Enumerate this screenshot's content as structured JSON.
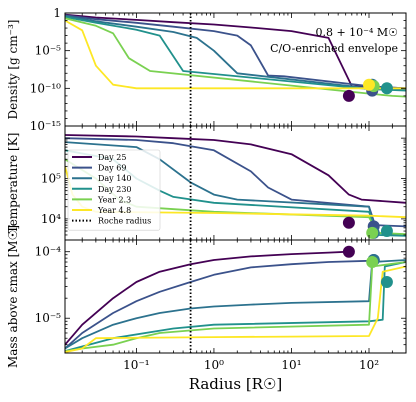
{
  "chart_data": [
    {
      "type": "line",
      "panel": "density",
      "ylabel": "Density [g cm⁻³]",
      "xscale": "log",
      "yscale": "log",
      "xlim": [
        0.012,
        300
      ],
      "ylim": [
        1e-15,
        1
      ],
      "ytick_labels": [
        "1",
        "10⁻⁵",
        "10⁻¹⁰",
        "10⁻¹⁵"
      ],
      "ytick_values": [
        1,
        1e-05,
        1e-10,
        1e-15
      ],
      "annotation_mass": "0.8 + 10⁻⁴ M☉",
      "annotation_env": "C/O-enriched envelope",
      "series": [
        {
          "name": "Day 25",
          "color": "#440154",
          "x": [
            0.012,
            0.03,
            0.1,
            0.3,
            1,
            3,
            10,
            30,
            60,
            100,
            200,
            300
          ],
          "y": [
            0.6,
            0.25,
            0.12,
            0.06,
            0.03,
            0.012,
            0.004,
            0.0005,
            2e-10,
            1.5e-10,
            1.2e-10,
            1e-10
          ],
          "marker": [
            55,
            1e-11
          ]
        },
        {
          "name": "Day 69",
          "color": "#3b528b",
          "x": [
            0.012,
            0.03,
            0.1,
            0.3,
            1,
            2,
            3,
            5,
            8,
            100,
            200,
            300
          ],
          "y": [
            0.5,
            0.15,
            0.05,
            0.015,
            0.004,
            0.001,
            5e-05,
            5e-09,
            4e-09,
            2e-10,
            1.2e-10,
            1e-10
          ],
          "marker": [
            110,
            5e-11
          ]
        },
        {
          "name": "Day 140",
          "color": "#2c728e",
          "x": [
            0.012,
            0.03,
            0.1,
            0.3,
            0.6,
            1,
            2,
            100,
            200,
            300
          ],
          "y": [
            0.4,
            0.08,
            0.015,
            0.003,
            0.0005,
            1e-05,
            1e-08,
            1e-10,
            8e-11,
            7e-11
          ],
          "marker": [
            110,
            3e-10
          ]
        },
        {
          "name": "Day 230",
          "color": "#21918c",
          "x": [
            0.012,
            0.03,
            0.1,
            0.2,
            0.4,
            100,
            200,
            300
          ],
          "y": [
            0.3,
            0.05,
            0.006,
            0.001,
            2e-08,
            8e-11,
            6e-11,
            5e-11
          ],
          "marker": [
            170,
            1e-10
          ]
        },
        {
          "name": "Year 2.3",
          "color": "#7ad151",
          "x": [
            0.012,
            0.03,
            0.05,
            0.08,
            0.15,
            100,
            200,
            300
          ],
          "y": [
            0.2,
            0.02,
            0.002,
            1e-06,
            2e-08,
            2e-11,
            1e-11,
            8e-12
          ],
          "marker": [
            115,
            2e-10
          ]
        },
        {
          "name": "Year 4.8",
          "color": "#fde725",
          "x": [
            0.012,
            0.02,
            0.03,
            0.05,
            0.1,
            1,
            10,
            100,
            300
          ],
          "y": [
            0.1,
            0.005,
            1e-07,
            3e-10,
            1e-10,
            1e-10,
            1e-10,
            1e-10,
            1e-10
          ],
          "marker": [
            100,
            3e-10
          ]
        }
      ]
    },
    {
      "type": "line",
      "panel": "temperature",
      "ylabel": "Temperature [K]",
      "xscale": "log",
      "yscale": "log",
      "xlim": [
        0.012,
        300
      ],
      "ylim": [
        3000,
        2000000
      ],
      "ytick_labels": [
        "10⁵",
        "10⁴"
      ],
      "ytick_values": [
        100000,
        10000
      ],
      "series": [
        {
          "name": "Day 25",
          "color": "#440154",
          "x": [
            0.012,
            0.1,
            0.3,
            1,
            3,
            10,
            30,
            55,
            80,
            300
          ],
          "y": [
            1200000,
            1100000,
            1000000,
            900000,
            700000,
            400000,
            120000,
            40000,
            30000,
            25000
          ],
          "marker": [
            55,
            8000
          ]
        },
        {
          "name": "Day 69",
          "color": "#3b528b",
          "x": [
            0.012,
            0.1,
            0.3,
            1,
            3,
            5,
            10,
            100,
            120,
            300
          ],
          "y": [
            1000000,
            900000,
            750000,
            500000,
            150000,
            60000,
            30000,
            20000,
            7000,
            6500
          ],
          "marker": [
            115,
            6500
          ]
        },
        {
          "name": "Day 140",
          "color": "#2c728e",
          "x": [
            0.012,
            0.1,
            0.2,
            0.5,
            1,
            2,
            100,
            120,
            300
          ],
          "y": [
            800000,
            600000,
            300000,
            80000,
            40000,
            30000,
            20000,
            4500,
            4000
          ],
          "marker": [
            115,
            4500
          ]
        },
        {
          "name": "Day 230",
          "color": "#21918c",
          "x": [
            0.012,
            0.05,
            0.1,
            0.2,
            0.3,
            1,
            100,
            130,
            300
          ],
          "y": [
            500000,
            300000,
            100000,
            50000,
            35000,
            25000,
            15000,
            4000,
            3800
          ],
          "marker": [
            170,
            5000
          ]
        },
        {
          "name": "Year 2.3",
          "color": "#7ad151",
          "x": [
            0.012,
            0.03,
            0.06,
            0.1,
            1,
            100,
            130,
            300
          ],
          "y": [
            300000,
            100000,
            30000,
            20000,
            15000,
            11000,
            4500,
            4200
          ],
          "marker": [
            110,
            4500
          ]
        },
        {
          "name": "Year 4.8",
          "color": "#fde725",
          "x": [
            0.012,
            0.015,
            0.02,
            0.03,
            1,
            100,
            300
          ],
          "y": [
            200000,
            40000,
            20000,
            15000,
            14000,
            12000,
            11000
          ],
          "marker": null
        }
      ]
    },
    {
      "type": "line",
      "panel": "mass",
      "ylabel": "Mass above εmax [M☉]",
      "xlabel": "Radius [R☉]",
      "xscale": "log",
      "yscale": "log",
      "xlim": [
        0.012,
        300
      ],
      "ylim": [
        3e-06,
        0.00015
      ],
      "ytick_labels": [
        "10⁻⁴",
        "10⁻⁵"
      ],
      "ytick_values": [
        0.0001,
        1e-05
      ],
      "xtick_labels": [
        "10⁻¹",
        "10⁰",
        "10¹",
        "10²"
      ],
      "xtick_values": [
        0.1,
        1,
        10,
        100
      ],
      "series": [
        {
          "name": "Day 25",
          "color": "#440154",
          "x": [
            0.012,
            0.02,
            0.05,
            0.1,
            0.2,
            0.5,
            1,
            3,
            10,
            30,
            55
          ],
          "y": [
            4e-06,
            8e-06,
            2e-05,
            3.5e-05,
            5e-05,
            6.5e-05,
            7.5e-05,
            8.5e-05,
            9.2e-05,
            9.7e-05,
            0.0001
          ],
          "marker": [
            55,
            0.0001
          ]
        },
        {
          "name": "Day 69",
          "color": "#3b528b",
          "x": [
            0.012,
            0.02,
            0.05,
            0.1,
            0.2,
            0.5,
            1,
            3,
            10,
            30,
            100,
            120
          ],
          "y": [
            3.5e-06,
            6e-06,
            1.2e-05,
            1.8e-05,
            2.5e-05,
            3.5e-05,
            4.5e-05,
            5.8e-05,
            6.5e-05,
            7e-05,
            7.3e-05,
            7.5e-05
          ],
          "marker": [
            115,
            7.5e-05
          ]
        },
        {
          "name": "Day 140",
          "color": "#2c728e",
          "x": [
            0.012,
            0.02,
            0.05,
            0.1,
            0.2,
            0.5,
            1,
            3,
            10,
            100,
            110,
            300
          ],
          "y": [
            3.5e-06,
            5e-06,
            8e-06,
            1e-05,
            1.2e-05,
            1.4e-05,
            1.5e-05,
            1.6e-05,
            1.7e-05,
            1.8e-05,
            7e-05,
            7.5e-05
          ],
          "marker": [
            115,
            7.5e-05
          ]
        },
        {
          "name": "Day 230",
          "color": "#21918c",
          "x": [
            0.012,
            0.05,
            0.3,
            1,
            100,
            150,
            160,
            300
          ],
          "y": [
            3.2e-06,
            5e-06,
            7e-06,
            8e-06,
            9e-06,
            9.5e-06,
            6e-05,
            7e-05
          ],
          "marker": [
            170,
            3.5e-05
          ]
        },
        {
          "name": "Year 2.3",
          "color": "#7ad151",
          "x": [
            0.012,
            0.02,
            0.05,
            0.1,
            0.2,
            1,
            100,
            110,
            300
          ],
          "y": [
            3.2e-06,
            3.5e-06,
            4e-06,
            5e-06,
            6e-06,
            7e-06,
            8e-06,
            6e-05,
            7e-05
          ],
          "marker": [
            110,
            7e-05
          ]
        },
        {
          "name": "Year 4.8",
          "color": "#fde725",
          "x": [
            0.012,
            0.02,
            0.03,
            1,
            10,
            100,
            130,
            150,
            300
          ],
          "y": [
            3.1e-06,
            3.5e-06,
            5e-06,
            5.2e-06,
            5.3e-06,
            5.4e-06,
            1e-05,
            5e-05,
            6e-05
          ],
          "marker": null
        }
      ]
    }
  ],
  "roche_radius": 0.5,
  "legend": {
    "entries": [
      {
        "label": "Day 25",
        "color": "#440154",
        "style": "solid"
      },
      {
        "label": "Day 69",
        "color": "#3b528b",
        "style": "solid"
      },
      {
        "label": "Day 140",
        "color": "#2c728e",
        "style": "solid"
      },
      {
        "label": "Day 230",
        "color": "#21918c",
        "style": "solid"
      },
      {
        "label": "Year 2.3",
        "color": "#7ad151",
        "style": "solid"
      },
      {
        "label": "Year 4.8",
        "color": "#fde725",
        "style": "solid"
      },
      {
        "label": "Roche radius",
        "color": "#000000",
        "style": "dotted"
      }
    ],
    "placement": "middle panel, upper-left"
  }
}
